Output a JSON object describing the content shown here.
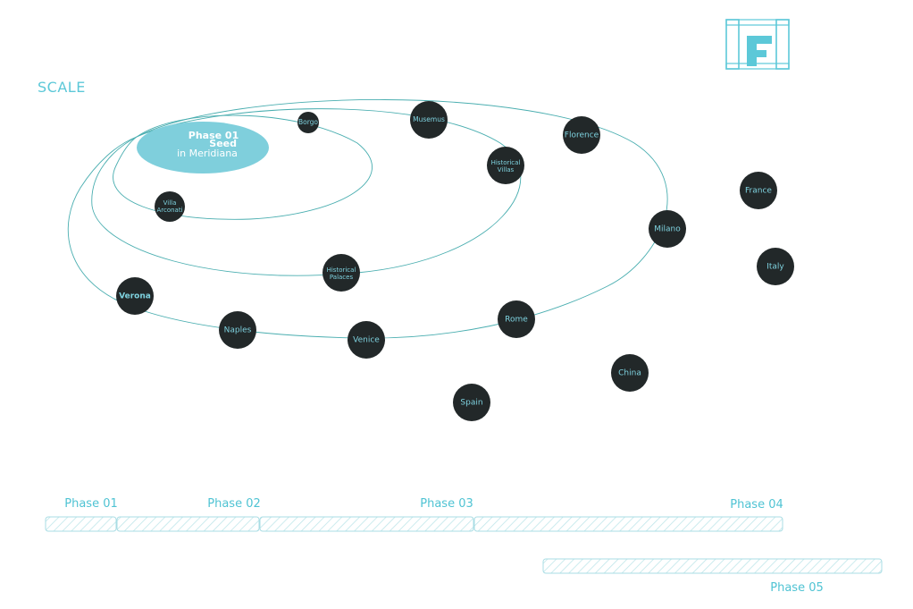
{
  "title": "SCALE",
  "logo": {
    "text": "HF",
    "color": "#5cc8d8",
    "icon": "hf-logo-icon"
  },
  "colors": {
    "accent": "#5cc8d8",
    "node_fill": "#222829",
    "node_text": "#7fd3e0",
    "orbit_line": "#4aaeb0",
    "seed_fill": "#7fcfdc"
  },
  "seed": {
    "line1": "Phase 01",
    "line2": "Seed",
    "line3": "in Meridiana"
  },
  "nodes": [
    {
      "id": "borgo",
      "lines": [
        "Borgo"
      ]
    },
    {
      "id": "villa-arconati",
      "lines": [
        "Villa",
        "Arconati"
      ]
    },
    {
      "id": "musemus",
      "lines": [
        "Musemus"
      ]
    },
    {
      "id": "historical-villas",
      "lines": [
        "Historical",
        "Villas"
      ]
    },
    {
      "id": "historical-palaces",
      "lines": [
        "Historical",
        "Palaces"
      ]
    },
    {
      "id": "florence",
      "lines": [
        "Florence"
      ]
    },
    {
      "id": "milano",
      "lines": [
        "Milano"
      ]
    },
    {
      "id": "verona",
      "lines": [
        "Verona"
      ]
    },
    {
      "id": "naples",
      "lines": [
        "Naples"
      ]
    },
    {
      "id": "venice",
      "lines": [
        "Venice"
      ]
    },
    {
      "id": "rome",
      "lines": [
        "Rome"
      ]
    },
    {
      "id": "france",
      "lines": [
        "France"
      ]
    },
    {
      "id": "italy",
      "lines": [
        "Italy"
      ]
    },
    {
      "id": "china",
      "lines": [
        "China"
      ]
    },
    {
      "id": "spain",
      "lines": [
        "Spain"
      ]
    }
  ],
  "timeline": {
    "phases": [
      "Phase 01",
      "Phase 02",
      "Phase 03",
      "Phase 04",
      "Phase 05"
    ]
  }
}
